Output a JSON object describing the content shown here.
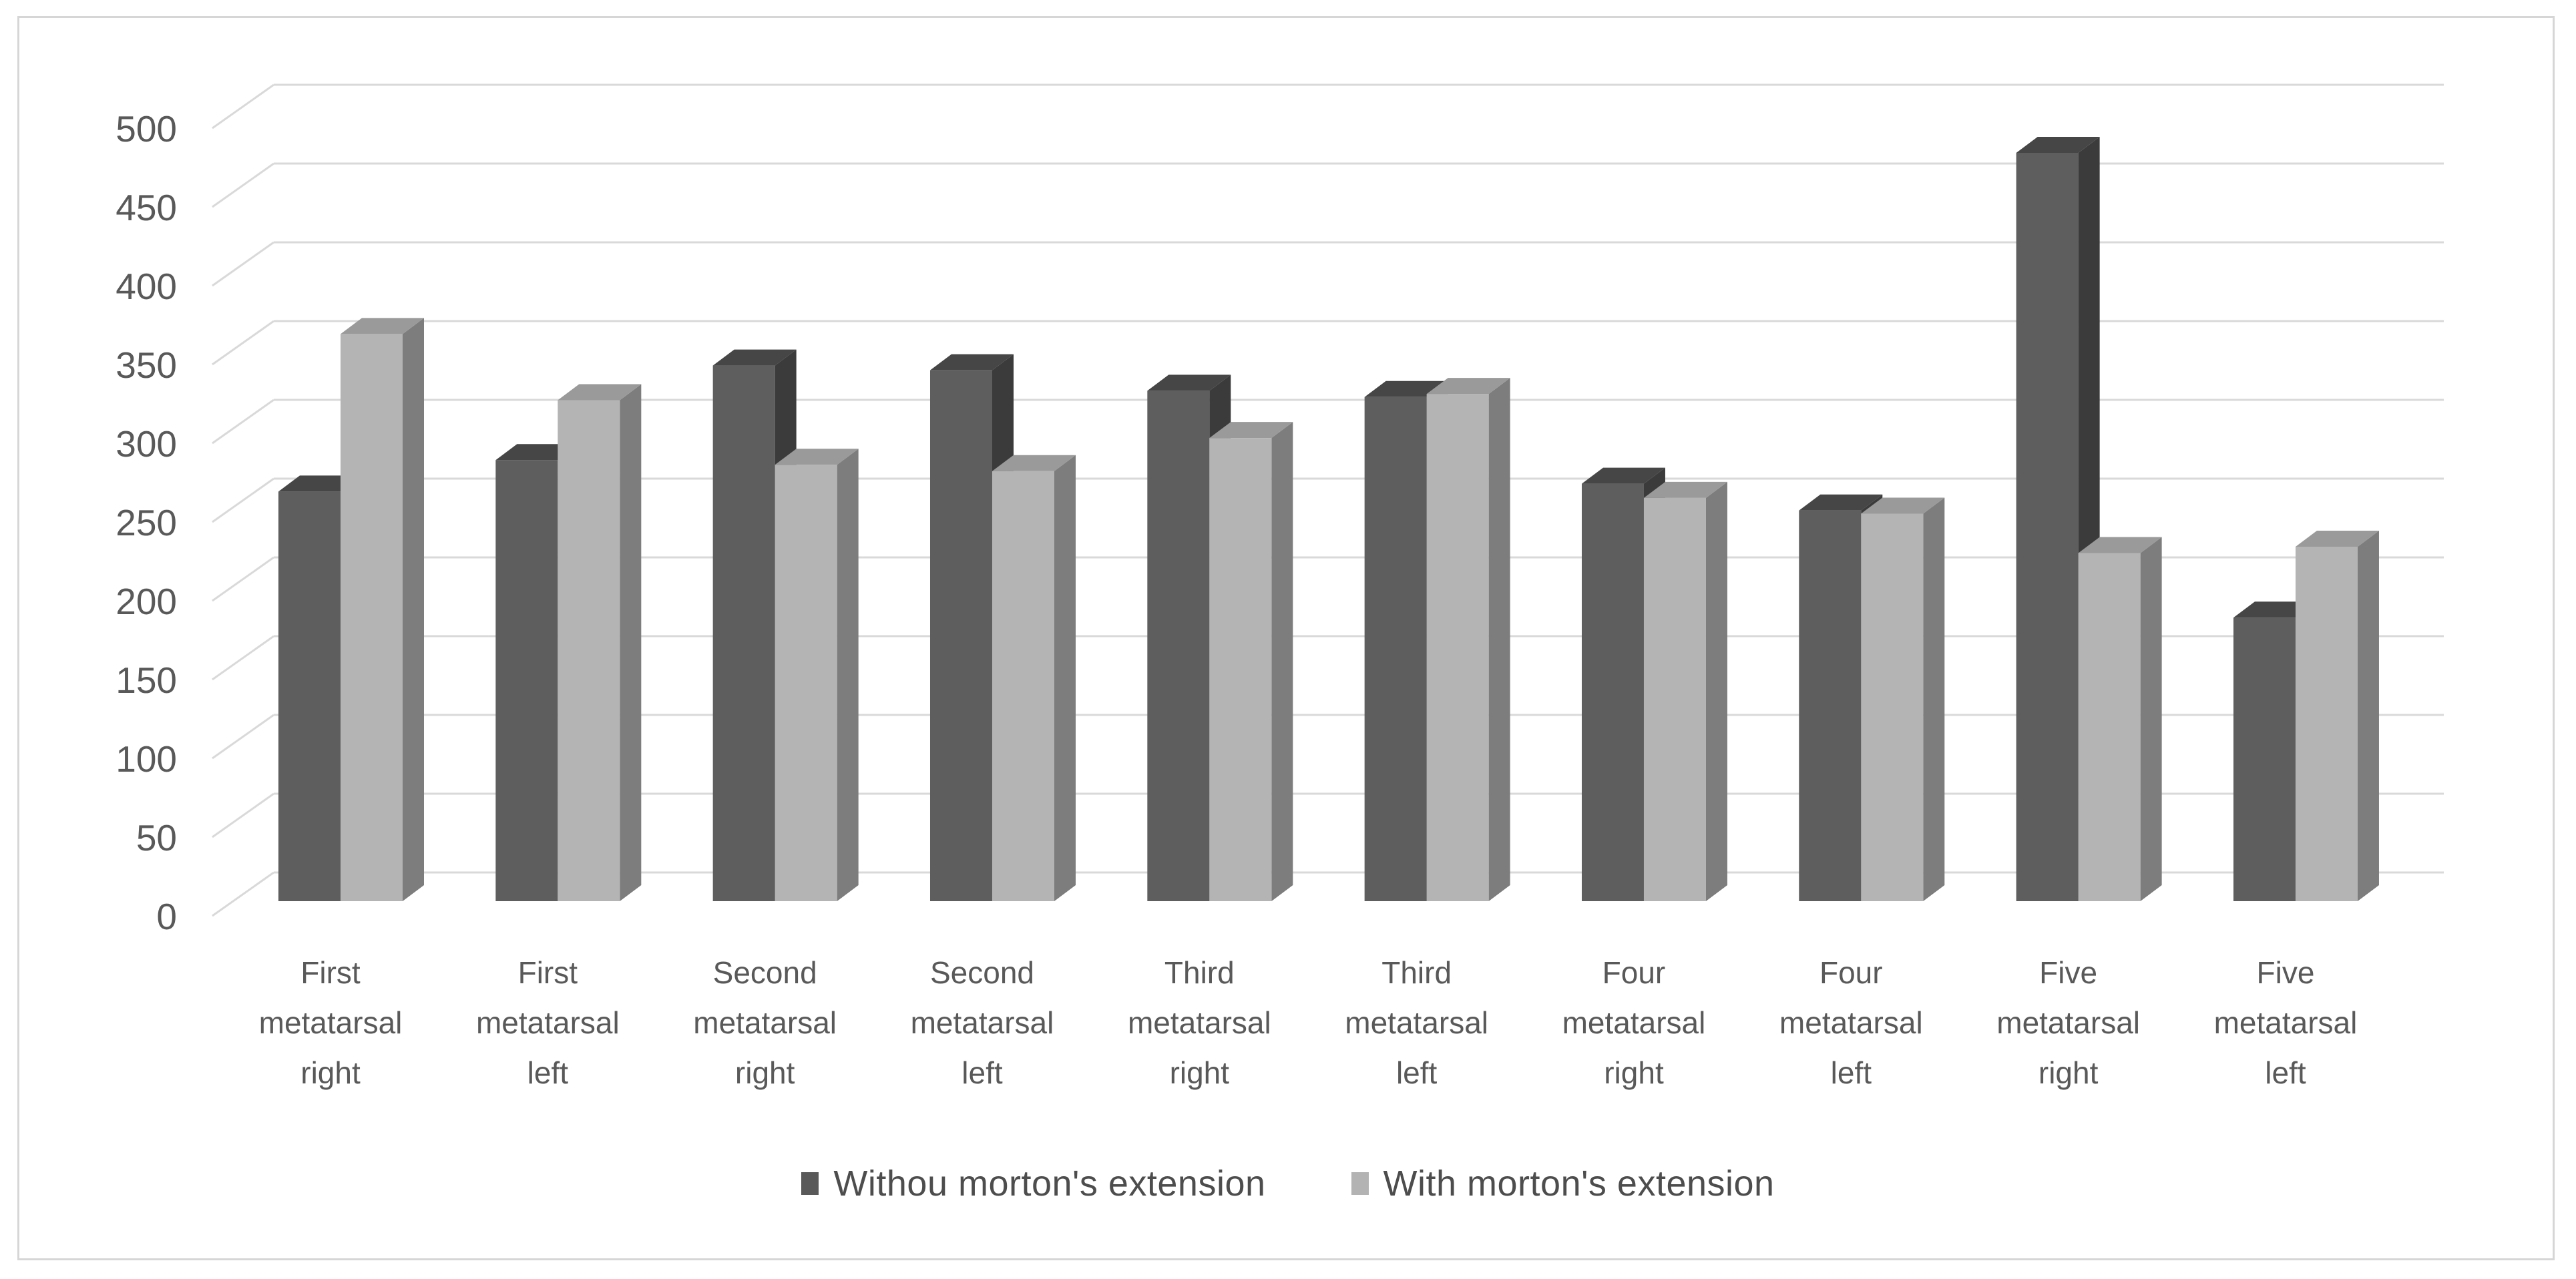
{
  "chart_data": {
    "type": "bar",
    "variant": "3d-clustered-column",
    "title": "",
    "xlabel": "",
    "ylabel": "",
    "categories": [
      "First metatarsal right",
      "First metatarsal left",
      "Second metatarsal right",
      "Second metatarsal left",
      "Third metatarsal right",
      "Third metatarsal left",
      "Four metatarsal right",
      "Four metatarsal left",
      "Five metatarsal right",
      "Five metatarsal left"
    ],
    "series": [
      {
        "name": "Withou morton's extension",
        "color": "#595959",
        "values": [
          260,
          280,
          340,
          337,
          324,
          320,
          265,
          248,
          475,
          180
        ]
      },
      {
        "name": "With morton's extension",
        "color": "#b3b3b3",
        "values": [
          360,
          318,
          277,
          273,
          294,
          322,
          256,
          246,
          221,
          225
        ]
      }
    ],
    "ylim": [
      0,
      500
    ],
    "y_ticks": [
      0,
      50,
      100,
      150,
      200,
      250,
      300,
      350,
      400,
      450,
      500
    ],
    "grid": true,
    "legend_position": "bottom"
  },
  "colors": {
    "gridline": "#d9d9d9",
    "axis_text": "#595959",
    "frame_border": "#d6d6d6",
    "background": "#ffffff",
    "bars": [
      {
        "front": "#5e5e5e",
        "top": "#464646",
        "side": "#3b3b3b"
      },
      {
        "front": "#b4b4b4",
        "top": "#9a9a9a",
        "side": "#7d7d7d"
      }
    ]
  }
}
